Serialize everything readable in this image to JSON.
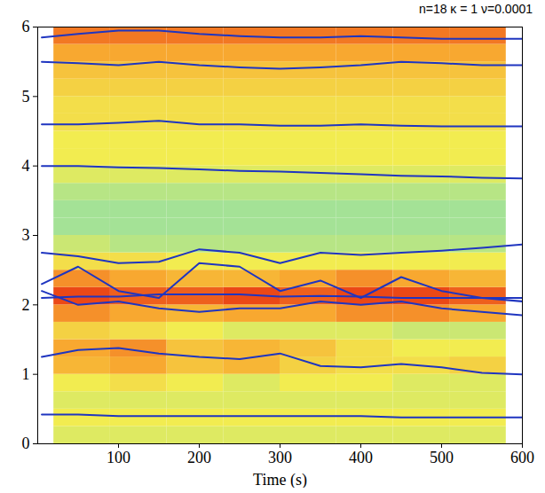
{
  "chart_data": {
    "type": "heatmap",
    "title": "n=18 κ = 1 ν=0.0001",
    "x_label": "Time (s)",
    "xlim": [
      0,
      600
    ],
    "xticks": [
      100,
      200,
      300,
      400,
      500,
      600
    ],
    "ylim": [
      0,
      6
    ],
    "yticks": [
      0,
      1,
      2,
      3,
      4,
      5,
      6
    ],
    "heatmap": {
      "x": [
        20,
        90,
        160,
        230,
        300,
        370,
        440,
        510,
        580
      ],
      "y": [
        0,
        0.25,
        0.5,
        0.75,
        1,
        1.25,
        1.5,
        1.75,
        2,
        2.25,
        2.5,
        2.75,
        3,
        3.25,
        3.5,
        3.75,
        4,
        4.25,
        4.5,
        4.75,
        5,
        5.25,
        5.5,
        5.75,
        6
      ],
      "values": [
        [
          0.45,
          0.45,
          0.45,
          0.45,
          0.45,
          0.45,
          0.45,
          0.45
        ],
        [
          0.5,
          0.5,
          0.5,
          0.5,
          0.5,
          0.5,
          0.5,
          0.5
        ],
        [
          0.45,
          0.45,
          0.45,
          0.45,
          0.45,
          0.45,
          0.45,
          0.45
        ],
        [
          0.5,
          0.55,
          0.5,
          0.45,
          0.5,
          0.5,
          0.45,
          0.45
        ],
        [
          0.7,
          0.75,
          0.65,
          0.7,
          0.6,
          0.55,
          0.55,
          0.6
        ],
        [
          0.75,
          0.8,
          0.65,
          0.7,
          0.65,
          0.55,
          0.5,
          0.5
        ],
        [
          0.6,
          0.55,
          0.5,
          0.45,
          0.45,
          0.45,
          0.4,
          0.4
        ],
        [
          0.8,
          0.75,
          0.7,
          0.75,
          0.75,
          0.8,
          0.8,
          0.75
        ],
        [
          0.95,
          0.9,
          0.9,
          0.95,
          0.9,
          0.95,
          0.95,
          0.9
        ],
        [
          0.8,
          0.75,
          0.7,
          0.7,
          0.75,
          0.8,
          0.75,
          0.7
        ],
        [
          0.55,
          0.55,
          0.5,
          0.5,
          0.5,
          0.5,
          0.5,
          0.5
        ],
        [
          0.4,
          0.35,
          0.35,
          0.35,
          0.35,
          0.35,
          0.35,
          0.35
        ],
        [
          0.3,
          0.3,
          0.3,
          0.3,
          0.3,
          0.3,
          0.3,
          0.3
        ],
        [
          0.3,
          0.3,
          0.3,
          0.3,
          0.3,
          0.3,
          0.3,
          0.3
        ],
        [
          0.35,
          0.35,
          0.35,
          0.35,
          0.35,
          0.35,
          0.35,
          0.35
        ],
        [
          0.45,
          0.45,
          0.45,
          0.45,
          0.45,
          0.45,
          0.45,
          0.45
        ],
        [
          0.5,
          0.5,
          0.5,
          0.5,
          0.5,
          0.5,
          0.5,
          0.5
        ],
        [
          0.5,
          0.5,
          0.5,
          0.5,
          0.5,
          0.5,
          0.5,
          0.5
        ],
        [
          0.55,
          0.55,
          0.55,
          0.55,
          0.55,
          0.55,
          0.55,
          0.55
        ],
        [
          0.55,
          0.55,
          0.55,
          0.55,
          0.55,
          0.55,
          0.55,
          0.55
        ],
        [
          0.6,
          0.6,
          0.6,
          0.6,
          0.6,
          0.6,
          0.6,
          0.6
        ],
        [
          0.65,
          0.65,
          0.65,
          0.65,
          0.65,
          0.65,
          0.65,
          0.65
        ],
        [
          0.75,
          0.75,
          0.75,
          0.75,
          0.75,
          0.75,
          0.75,
          0.75
        ],
        [
          0.85,
          0.85,
          0.85,
          0.85,
          0.85,
          0.85,
          0.85,
          0.85
        ]
      ],
      "clim": [
        0,
        1
      ]
    },
    "x": [
      5,
      50,
      100,
      150,
      200,
      250,
      300,
      350,
      400,
      450,
      500,
      550,
      600
    ],
    "series": [
      {
        "color": "#1f35c0",
        "values": [
          5.85,
          5.9,
          5.95,
          5.95,
          5.9,
          5.87,
          5.85,
          5.85,
          5.87,
          5.85,
          5.83,
          5.83,
          5.83
        ]
      },
      {
        "color": "#1f35c0",
        "values": [
          5.5,
          5.48,
          5.45,
          5.5,
          5.45,
          5.42,
          5.4,
          5.42,
          5.45,
          5.5,
          5.48,
          5.45,
          5.45
        ]
      },
      {
        "color": "#1f35c0",
        "values": [
          4.6,
          4.6,
          4.62,
          4.65,
          4.6,
          4.6,
          4.58,
          4.58,
          4.6,
          4.58,
          4.57,
          4.57,
          4.57
        ]
      },
      {
        "color": "#1f35c0",
        "values": [
          4.0,
          4.0,
          3.98,
          3.97,
          3.95,
          3.93,
          3.92,
          3.9,
          3.88,
          3.86,
          3.85,
          3.83,
          3.82
        ]
      },
      {
        "color": "#1f35c0",
        "values": [
          2.75,
          2.7,
          2.6,
          2.62,
          2.8,
          2.75,
          2.6,
          2.75,
          2.72,
          2.75,
          2.78,
          2.82,
          2.87
        ]
      },
      {
        "color": "#1f35c0",
        "values": [
          2.3,
          2.55,
          2.2,
          2.1,
          2.6,
          2.55,
          2.2,
          2.35,
          2.1,
          2.4,
          2.2,
          2.1,
          2.05
        ]
      },
      {
        "color": "#1f35c0",
        "values": [
          2.1,
          2.12,
          2.12,
          2.15,
          2.15,
          2.15,
          2.12,
          2.13,
          2.12,
          2.1,
          2.1,
          2.1,
          2.1
        ]
      },
      {
        "color": "#1f35c0",
        "values": [
          2.2,
          2.0,
          2.05,
          1.95,
          1.9,
          1.95,
          1.95,
          2.05,
          2.0,
          2.05,
          1.95,
          1.9,
          1.85
        ]
      },
      {
        "color": "#1f35c0",
        "values": [
          1.25,
          1.35,
          1.38,
          1.3,
          1.25,
          1.22,
          1.3,
          1.12,
          1.1,
          1.15,
          1.1,
          1.02,
          1.0
        ]
      },
      {
        "color": "#1f35c0",
        "values": [
          0.42,
          0.42,
          0.4,
          0.4,
          0.4,
          0.4,
          0.4,
          0.4,
          0.4,
          0.38,
          0.38,
          0.38,
          0.38
        ]
      }
    ]
  }
}
